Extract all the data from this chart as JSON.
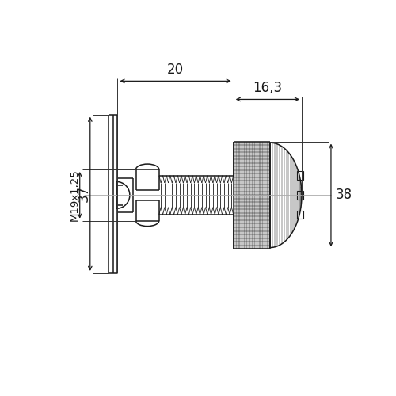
{
  "bg_color": "#ffffff",
  "line_color": "#1a1a1a",
  "dim_color": "#1a1a1a",
  "figsize": [
    5.0,
    5.0
  ],
  "dpi": 100,
  "annotations": {
    "dim_20": "20",
    "dim_163": "16,3",
    "dim_37": "37",
    "dim_38": "38",
    "dim_thread": "M19x1,25"
  }
}
